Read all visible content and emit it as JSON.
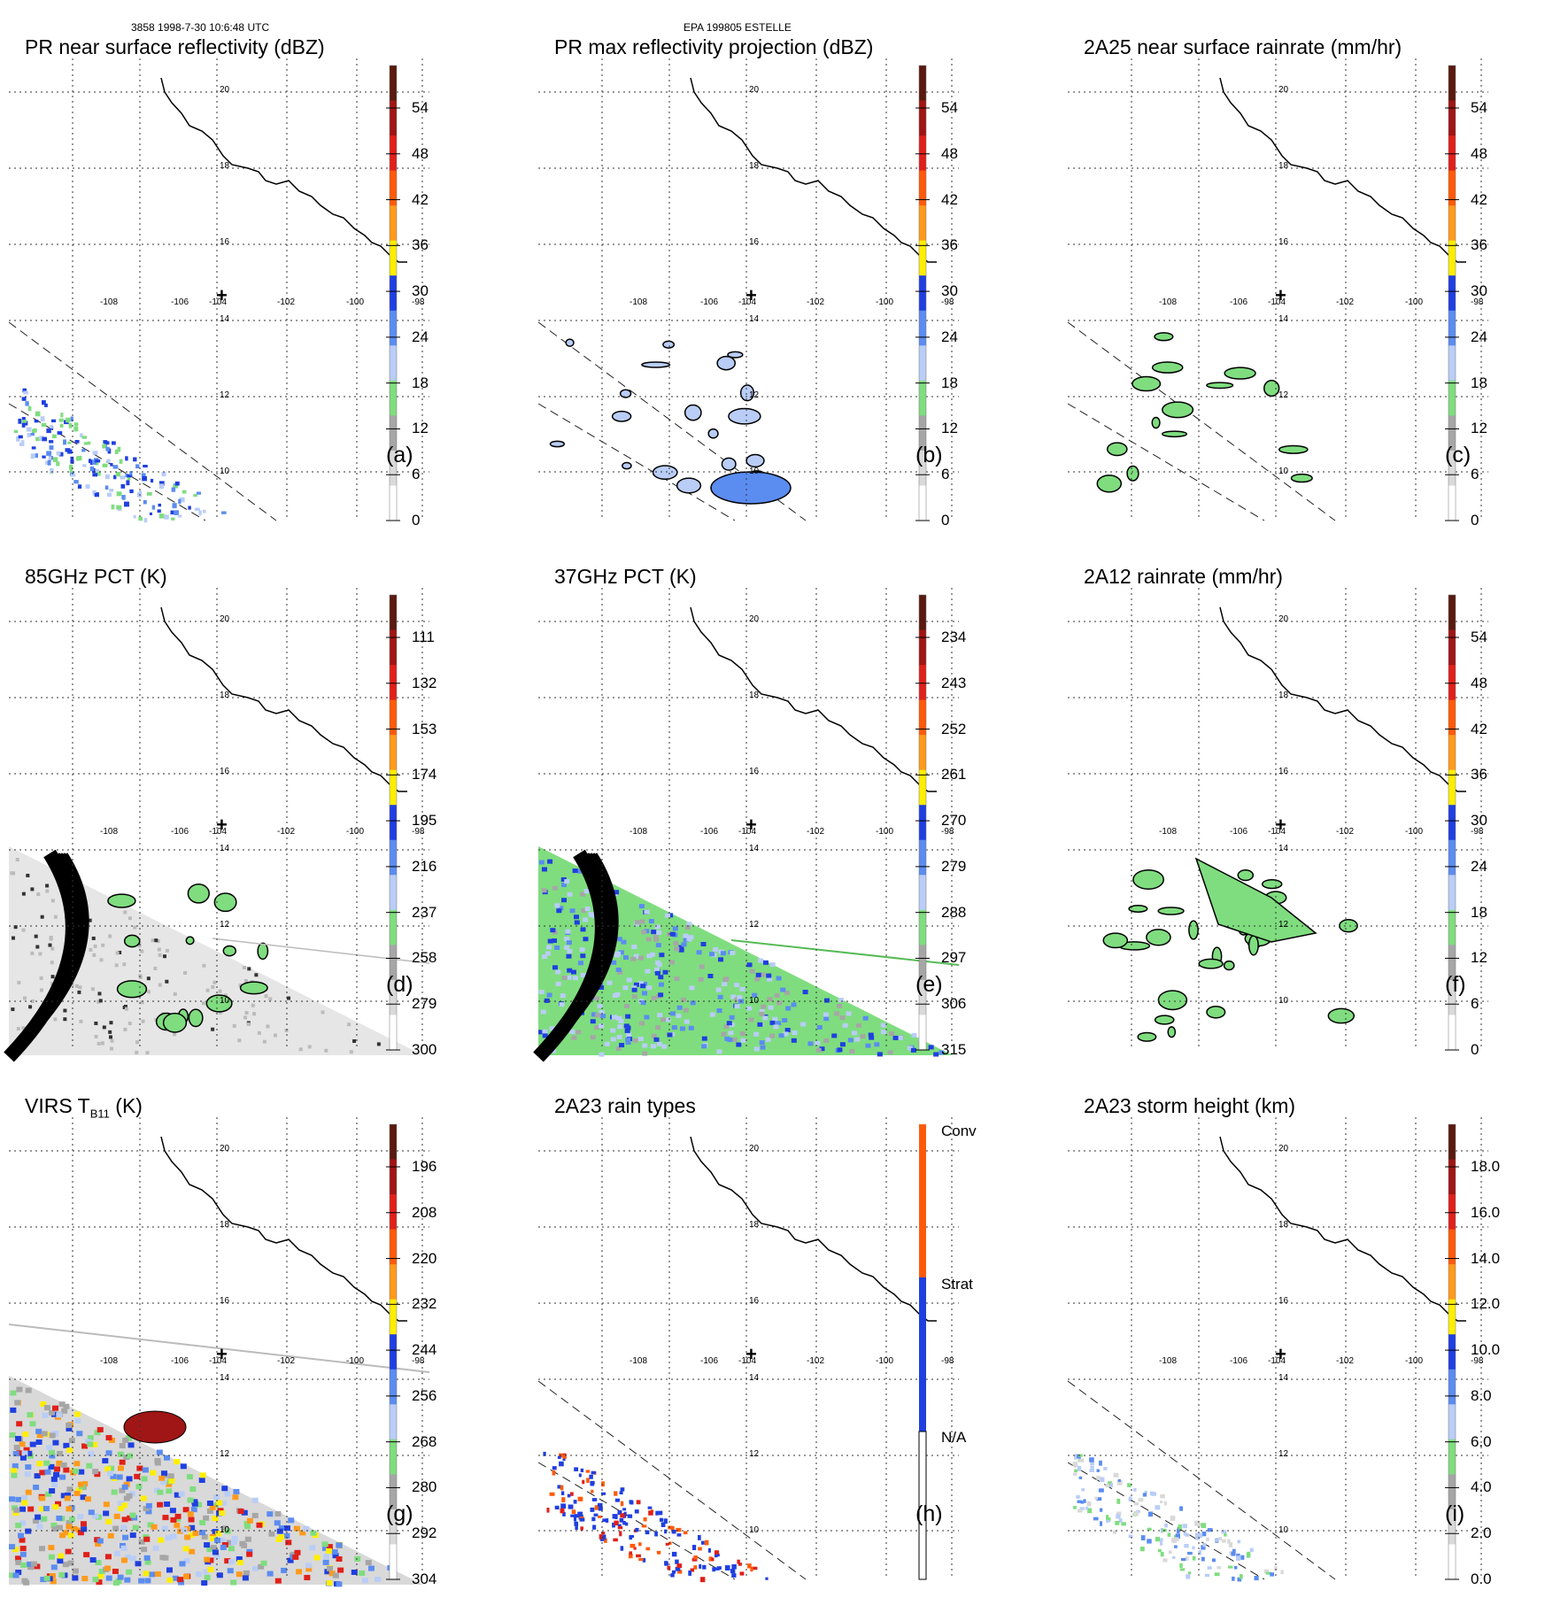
{
  "header": {
    "orbit_time": "3858 1998-7-30 10:6:48 UTC",
    "storm_id": "EPA 199805 ESTELLE"
  },
  "map": {
    "lon_labels": [
      "-108",
      "-106",
      "-104",
      "-102",
      "-100",
      "-98"
    ],
    "lat_labels": [
      "10",
      "12",
      "14",
      "16",
      "18",
      "20"
    ],
    "center_marker": "+"
  },
  "colors": {
    "palette": [
      "#ffffff",
      "#d9d9d9",
      "#a6a6a6",
      "#7fdd7f",
      "#b9cdf7",
      "#5b8cf0",
      "#1f3fe0",
      "#ffee00",
      "#ff9a1a",
      "#ff5a0a",
      "#e0201a",
      "#a01515",
      "#5a1a10"
    ]
  },
  "panels": [
    {
      "id": "a",
      "title": "PR near surface reflectivity (dBZ)",
      "label": "(a)",
      "colorbar": {
        "type": "scale",
        "labels": [
          "54",
          "48",
          "42",
          "36",
          "30",
          "24",
          "18",
          "12",
          "6",
          "0"
        ]
      }
    },
    {
      "id": "b",
      "title": "PR max reflectivity projection (dBZ)",
      "label": "(b)",
      "colorbar": {
        "type": "scale",
        "labels": [
          "54",
          "48",
          "42",
          "36",
          "30",
          "24",
          "18",
          "12",
          "6",
          "0"
        ]
      }
    },
    {
      "id": "c",
      "title": "2A25 near surface rainrate (mm/hr)",
      "label": "(c)",
      "colorbar": {
        "type": "scale",
        "labels": [
          "54",
          "48",
          "42",
          "36",
          "30",
          "24",
          "18",
          "12",
          "6",
          "0"
        ]
      }
    },
    {
      "id": "d",
      "title": "85GHz PCT (K)",
      "label": "(d)",
      "colorbar": {
        "type": "scale",
        "labels": [
          "111",
          "132",
          "153",
          "174",
          "195",
          "216",
          "237",
          "258",
          "279",
          "300"
        ]
      }
    },
    {
      "id": "e",
      "title": "37GHz PCT (K)",
      "label": "(e)",
      "colorbar": {
        "type": "scale",
        "labels": [
          "234",
          "243",
          "252",
          "261",
          "270",
          "279",
          "288",
          "297",
          "306",
          "315"
        ]
      }
    },
    {
      "id": "f",
      "title": "2A12 rainrate (mm/hr)",
      "label": "(f)",
      "colorbar": {
        "type": "scale",
        "labels": [
          "54",
          "48",
          "42",
          "36",
          "30",
          "24",
          "18",
          "12",
          "6",
          "0"
        ]
      }
    },
    {
      "id": "g",
      "title": "VIRS T",
      "title_sub": "B11",
      "title_suffix": " (K)",
      "label": "(g)",
      "colorbar": {
        "type": "scale",
        "labels": [
          "196",
          "208",
          "220",
          "232",
          "244",
          "256",
          "268",
          "280",
          "292",
          "304"
        ]
      }
    },
    {
      "id": "h",
      "title": "2A23 rain types",
      "label": "(h)",
      "colorbar": {
        "type": "category",
        "labels": [
          "Conv",
          "Strat",
          "N/A"
        ]
      }
    },
    {
      "id": "i",
      "title": "2A23 storm height (km)",
      "label": "(i)",
      "colorbar": {
        "type": "scale",
        "labels": [
          "18.0",
          "16.0",
          "14.0",
          "12.0",
          "10.0",
          "8.0",
          "6.0",
          "4.0",
          "2.0",
          "0.0"
        ]
      }
    }
  ]
}
